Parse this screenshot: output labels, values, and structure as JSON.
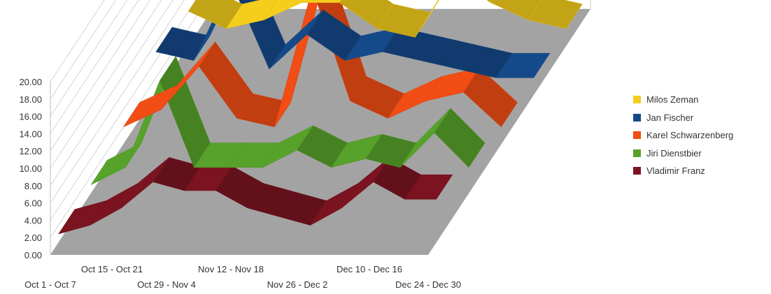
{
  "chart_data": {
    "type": "line",
    "style": "3d-ribbon",
    "y_axis": {
      "ticks": [
        "0.00",
        "2.00",
        "4.00",
        "6.00",
        "8.00",
        "10.00",
        "12.00",
        "14.00",
        "16.00",
        "18.00",
        "20.00"
      ],
      "ylim": [
        0,
        20
      ]
    },
    "x_axis": {
      "labels_row1": [
        "Oct 15 - Oct 21",
        "Nov 12 - Nov 18",
        "Dec 10 - Dec 16"
      ],
      "labels_row2": [
        "Oct 1 - Oct 7",
        "Oct 29 - Nov 4",
        "Nov 26 - Dec 2",
        "Dec 24 - Dec 30"
      ]
    },
    "grid": true,
    "legend_position": "right",
    "series": [
      {
        "name": "Milos Zeman",
        "color": "#f5cd1d",
        "values": [
          4,
          2,
          3,
          5,
          5,
          2,
          1,
          8,
          5,
          3,
          2
        ]
      },
      {
        "name": "Jan Fischer",
        "color": "#154a8a",
        "values": [
          5,
          4,
          13,
          3,
          7,
          4,
          5,
          4,
          3,
          2,
          2
        ]
      },
      {
        "name": "Karel Schwarzenberg",
        "color": "#f14d14",
        "values": [
          2,
          4,
          9,
          3,
          2,
          18,
          5,
          3,
          5,
          6,
          2
        ]
      },
      {
        "name": "Jiri Dienstbier",
        "color": "#57a22a",
        "values": [
          1,
          3,
          13,
          3,
          3,
          3,
          5,
          3,
          4,
          3,
          7,
          3
        ]
      },
      {
        "name": "Vladimir Franz",
        "color": "#7b1420",
        "values": [
          1,
          2,
          4,
          7,
          6,
          6,
          4,
          3,
          2,
          4,
          7,
          5,
          5
        ]
      }
    ]
  }
}
